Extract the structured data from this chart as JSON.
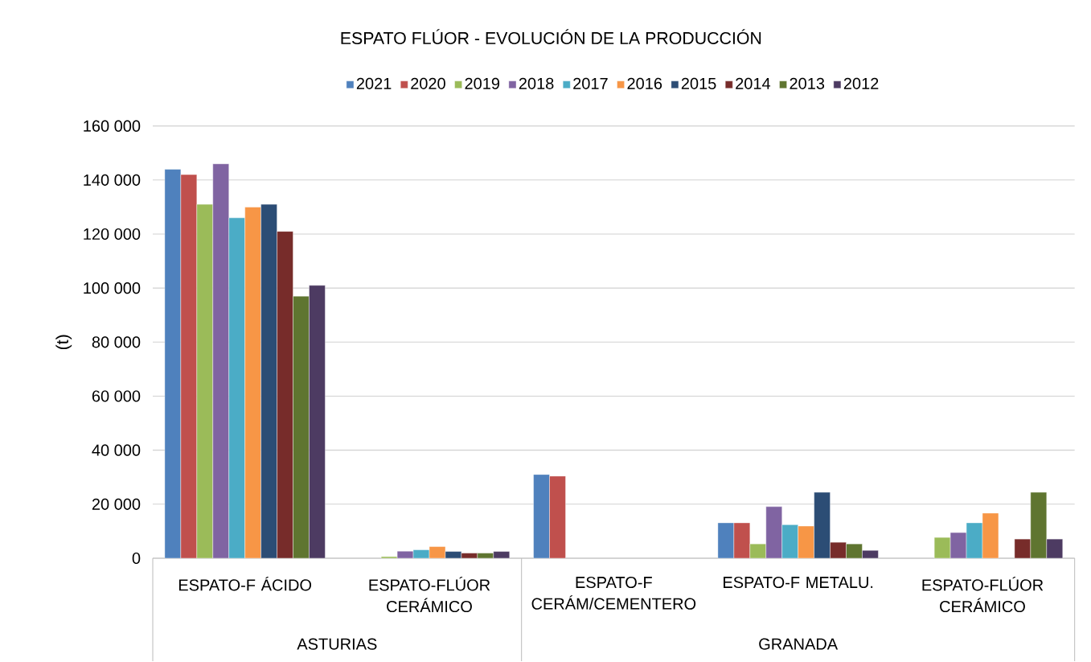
{
  "chart_data": {
    "type": "bar",
    "title": "ESPATO FLÚOR - EVOLUCIÓN  DE LA PRODUCCIÓN",
    "ylabel": "(t)",
    "categories": [
      "ESPATO-F ÁCIDO",
      "ESPATO-FLÚOR CERÁMICO",
      "ESPATO-F CERÁM/CEMENTERO",
      "ESPATO-F METALU.",
      "ESPATO-FLÚOR CERÁMICO"
    ],
    "annotations": [
      "ASTURIAS",
      "GRANADA"
    ],
    "series": [
      {
        "name": "2021",
        "color": "#4f81bd",
        "values": [
          144000,
          null,
          31000,
          13100,
          null
        ]
      },
      {
        "name": "2020",
        "color": "#c0504d",
        "values": [
          142000,
          null,
          30400,
          13100,
          null
        ]
      },
      {
        "name": "2019",
        "color": "#9bbb59",
        "values": [
          131000,
          600,
          null,
          5300,
          7700
        ]
      },
      {
        "name": "2018",
        "color": "#8064a2",
        "values": [
          146000,
          2600,
          null,
          19100,
          9500
        ]
      },
      {
        "name": "2017",
        "color": "#4bacc6",
        "values": [
          126000,
          3100,
          null,
          12400,
          13100
        ]
      },
      {
        "name": "2016",
        "color": "#f79646",
        "values": [
          130000,
          4300,
          null,
          11900,
          16700
        ]
      },
      {
        "name": "2015",
        "color": "#2c4d75",
        "values": [
          131000,
          2500,
          null,
          24400,
          null
        ]
      },
      {
        "name": "2014",
        "color": "#772c2a",
        "values": [
          121000,
          1900,
          null,
          5900,
          7100
        ]
      },
      {
        "name": "2013",
        "color": "#5f7530",
        "values": [
          97000,
          1900,
          null,
          5300,
          24400
        ]
      },
      {
        "name": "2012",
        "color": "#4d3b62",
        "values": [
          101000,
          2500,
          null,
          2900,
          7100
        ]
      }
    ],
    "ylim": [
      0,
      160000
    ],
    "yticks": [
      0,
      {
        "value": 20000,
        "label": "20 000"
      },
      {
        "value": 40000,
        "label": "40 000"
      },
      {
        "value": 60000,
        "label": "60 000"
      },
      {
        "value": 80000,
        "label": "80 000"
      },
      {
        "value": 100000,
        "label": "100 000"
      },
      {
        "value": 120000,
        "label": "120 000"
      },
      {
        "value": 140000,
        "label": "140 000"
      },
      {
        "value": 160000,
        "label": "160 000"
      }
    ],
    "grid": "y",
    "legend": "top"
  }
}
